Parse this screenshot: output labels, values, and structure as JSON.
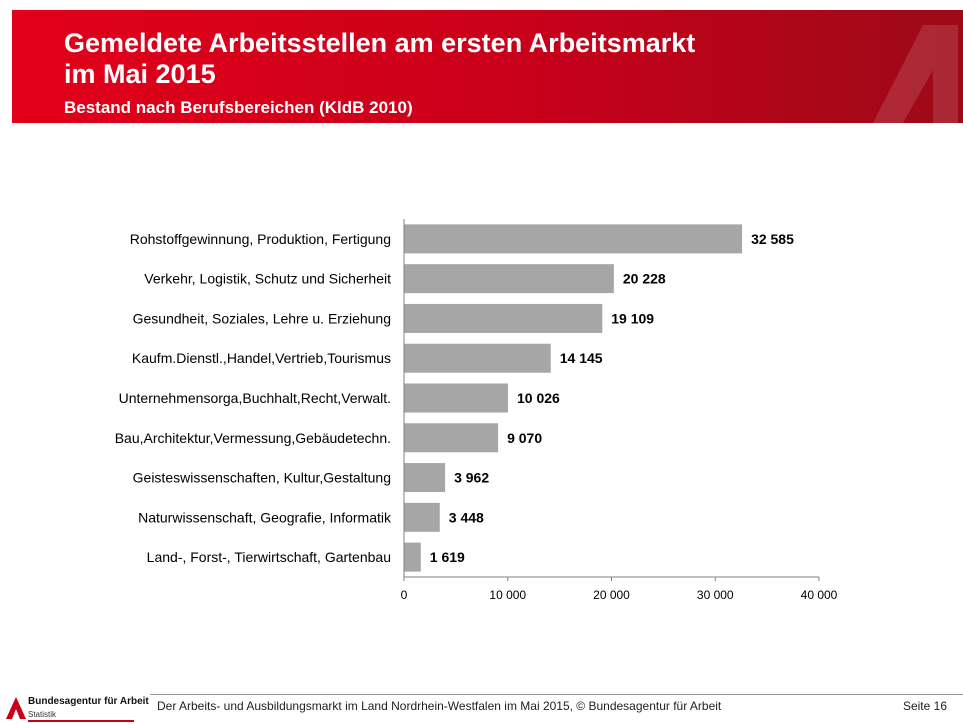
{
  "header": {
    "title_line1": "Gemeldete Arbeitsstellen am ersten Arbeitsmarkt",
    "title_line2": "im Mai 2015",
    "subtitle": "Bestand nach Berufsbereichen (KldB 2010)"
  },
  "chart_data": {
    "type": "bar",
    "orientation": "horizontal",
    "categories": [
      "Rohstoffgewinnung, Produktion, Fertigung",
      "Verkehr, Logistik, Schutz und Sicherheit",
      "Gesundheit, Soziales, Lehre u. Erziehung",
      "Kaufm.Dienstl.,Handel,Vertrieb,Tourismus",
      "Unternehmensorga,Buchhalt,Recht,Verwalt.",
      "Bau,Architektur,Vermessung,Gebäudetechn.",
      "Geisteswissenschaften, Kultur,Gestaltung",
      "Naturwissenschaft, Geografie, Informatik",
      "Land-, Forst-, Tierwirtschaft, Gartenbau"
    ],
    "values": [
      32585,
      20228,
      19109,
      14145,
      10026,
      9070,
      3962,
      3448,
      1619
    ],
    "value_labels": [
      "32 585",
      "20 228",
      "19 109",
      "14 145",
      "10 026",
      "9 070",
      "3 962",
      "3 448",
      "1 619"
    ],
    "xlim": [
      0,
      40000
    ],
    "ticks": [
      0,
      10000,
      20000,
      30000,
      40000
    ],
    "tick_labels": [
      "0",
      "10 000",
      "20 000",
      "30 000",
      "40 000"
    ],
    "bar_color": "#a6a6a6",
    "grid": false,
    "legend": "none"
  },
  "footer": {
    "text": "Der Arbeits- und Ausbildungsmarkt im Land Nordrhein-Westfalen im Mai 2015, © Bundesagentur für Arbeit",
    "page": "Seite 16",
    "logo_name": "Bundesagentur für Arbeit",
    "logo_sub": "Statistik"
  },
  "colors": {
    "brand_red": "#e2001a",
    "brand_dark_red": "#9c0a18"
  }
}
